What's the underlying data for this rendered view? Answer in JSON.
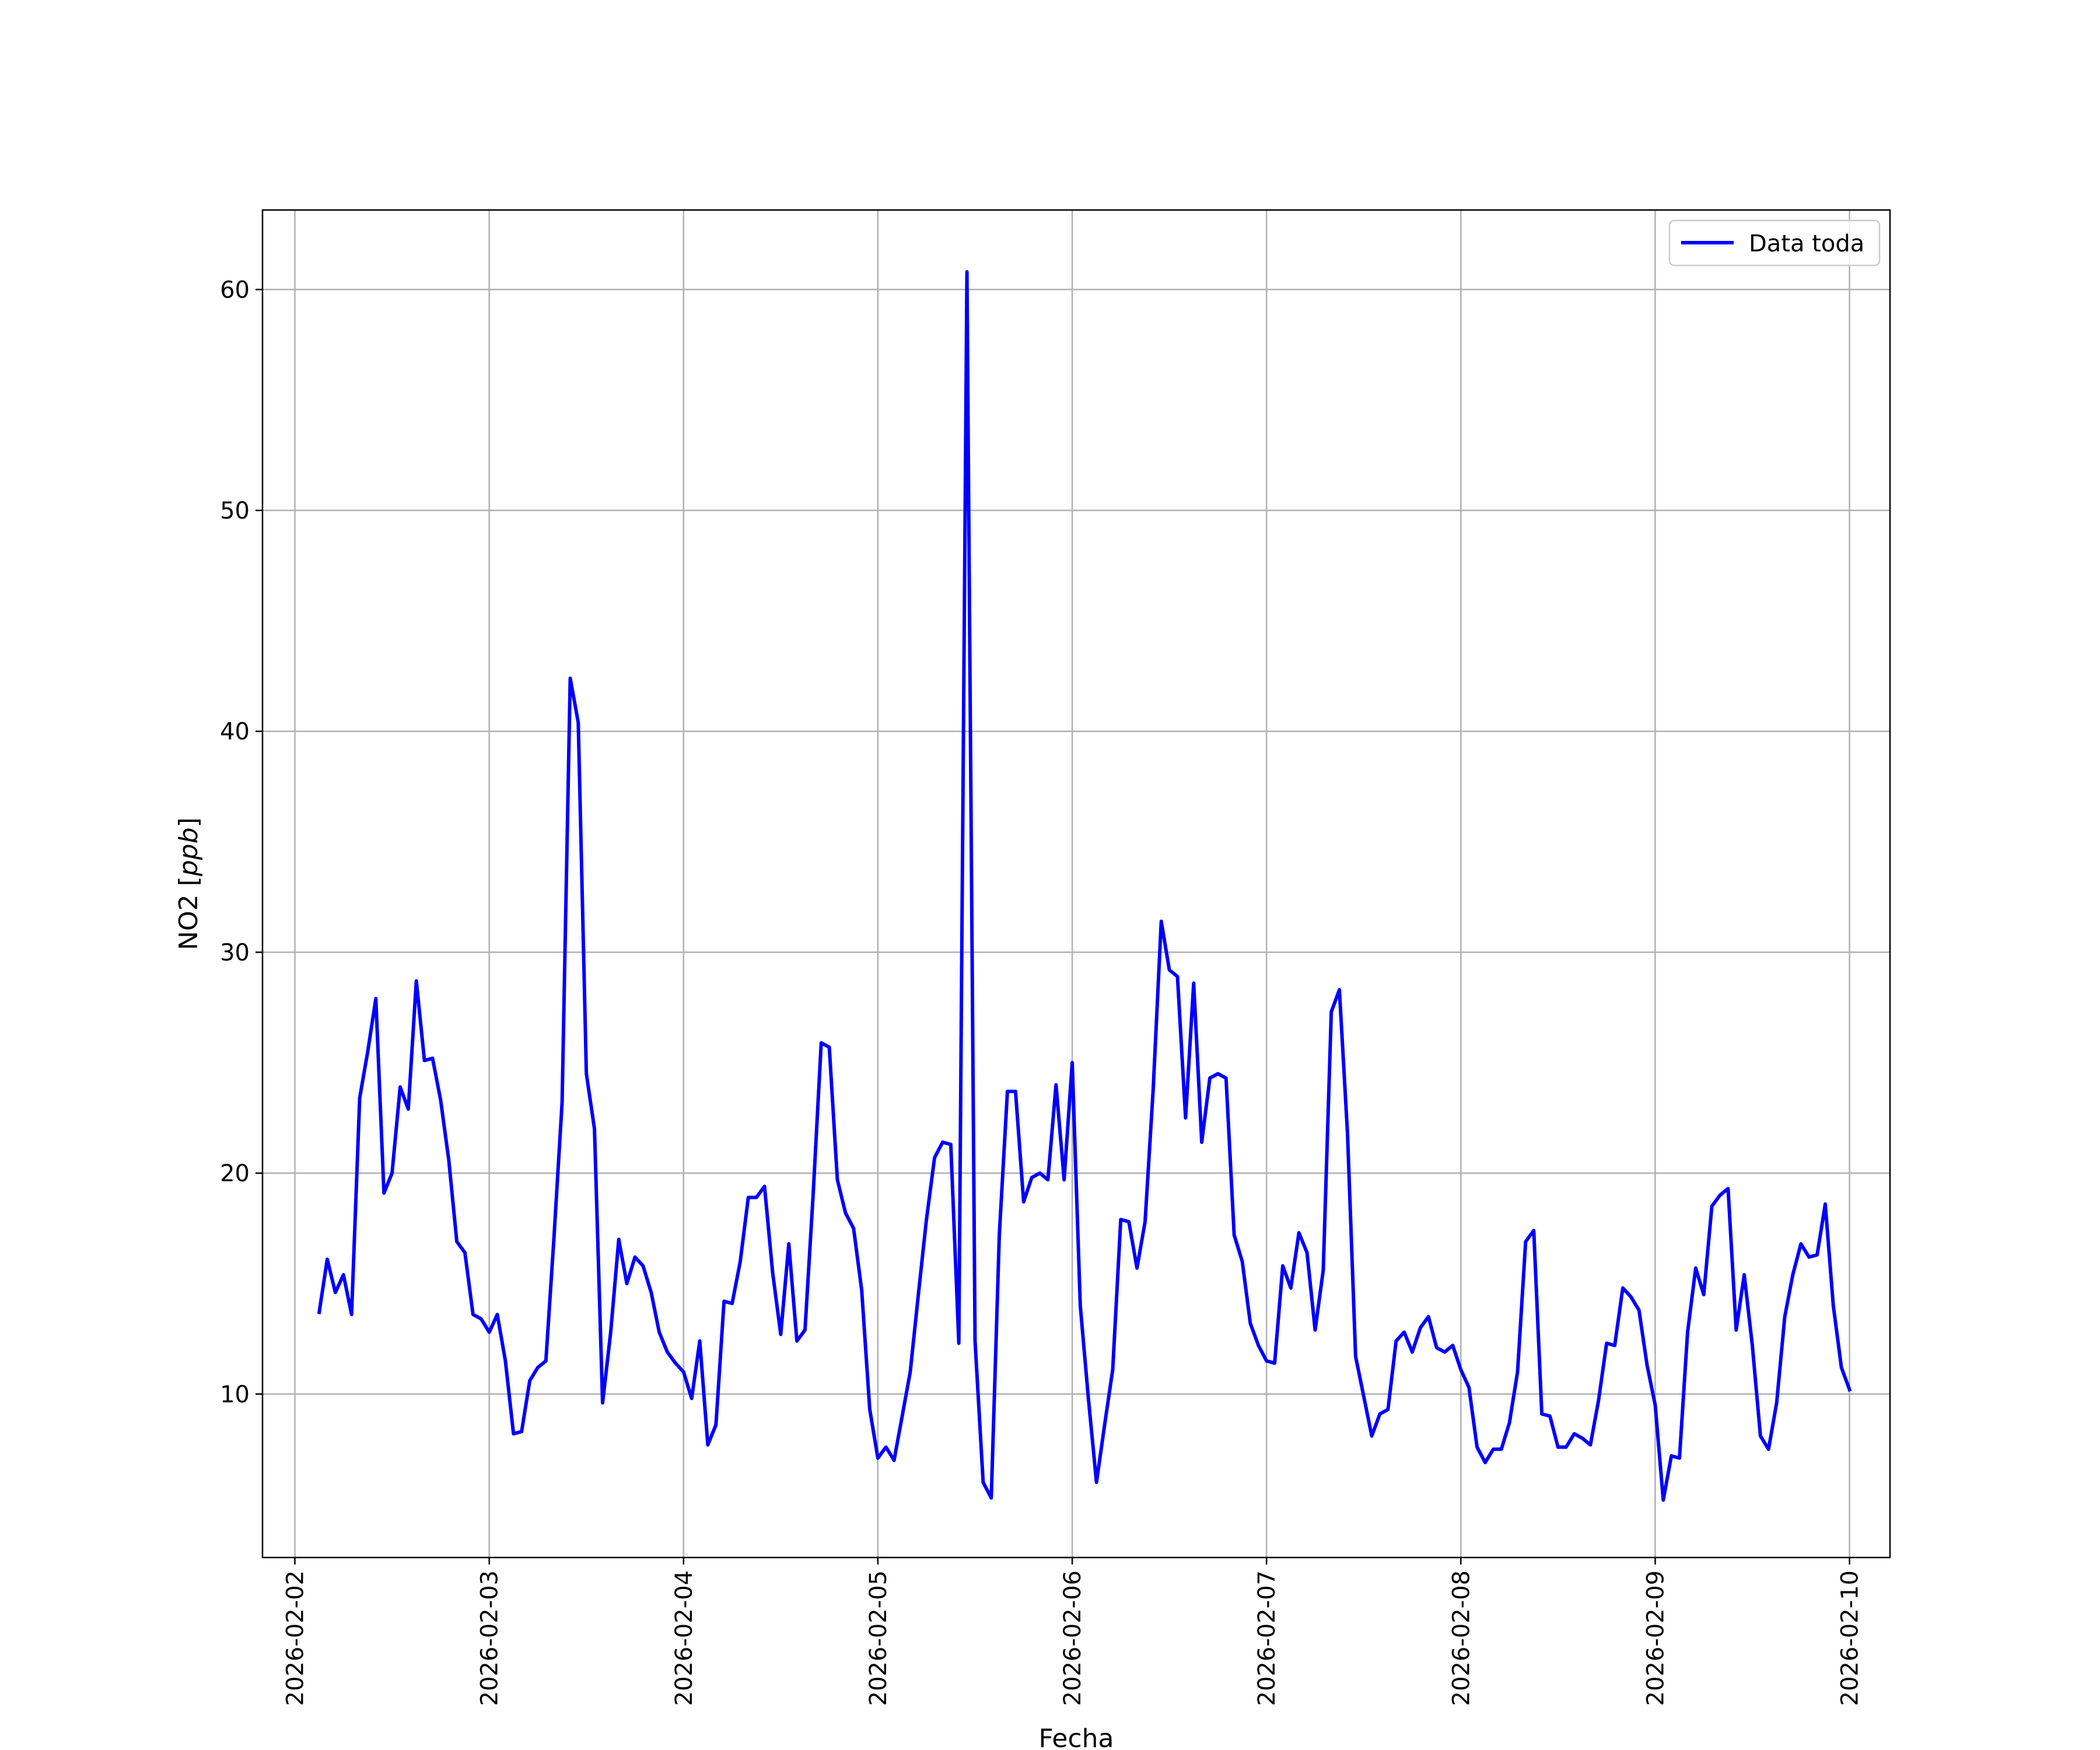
{
  "chart_data": {
    "type": "line",
    "title": "",
    "xlabel": "Fecha",
    "ylabel": "NO2 [ppb]",
    "ylabel_prefix": "NO2 [",
    "ylabel_unit": "ppb",
    "ylabel_suffix": "]",
    "x_type": "datetime",
    "xlim": [
      "2026-02-01T20:00",
      "2026-02-10T05:00"
    ],
    "ylim": [
      2.6,
      63.6
    ],
    "x_ticks": [
      "2026-02-02",
      "2026-02-03",
      "2026-02-04",
      "2026-02-05",
      "2026-02-06",
      "2026-02-07",
      "2026-02-08",
      "2026-02-09",
      "2026-02-10"
    ],
    "y_ticks": [
      10,
      20,
      30,
      40,
      50,
      60
    ],
    "grid": true,
    "legend": {
      "position": "upper right"
    },
    "series": [
      {
        "name": "Data toda",
        "color": "#0000ff",
        "x": [
          "2026-02-02T03:00",
          "2026-02-02T04:00",
          "2026-02-02T05:00",
          "2026-02-02T06:00",
          "2026-02-02T07:00",
          "2026-02-02T08:00",
          "2026-02-02T09:00",
          "2026-02-02T10:00",
          "2026-02-02T11:00",
          "2026-02-02T12:00",
          "2026-02-02T13:00",
          "2026-02-02T14:00",
          "2026-02-02T15:00",
          "2026-02-02T16:00",
          "2026-02-02T17:00",
          "2026-02-02T18:00",
          "2026-02-02T19:00",
          "2026-02-02T20:00",
          "2026-02-02T21:00",
          "2026-02-02T22:00",
          "2026-02-02T23:00",
          "2026-02-03T00:00",
          "2026-02-03T01:00",
          "2026-02-03T02:00",
          "2026-02-03T03:00",
          "2026-02-03T04:00",
          "2026-02-03T05:00",
          "2026-02-03T06:00",
          "2026-02-03T07:00",
          "2026-02-03T08:00",
          "2026-02-03T09:00",
          "2026-02-03T10:00",
          "2026-02-03T11:00",
          "2026-02-03T12:00",
          "2026-02-03T13:00",
          "2026-02-03T14:00",
          "2026-02-03T15:00",
          "2026-02-03T16:00",
          "2026-02-03T17:00",
          "2026-02-03T18:00",
          "2026-02-03T19:00",
          "2026-02-03T20:00",
          "2026-02-03T21:00",
          "2026-02-03T22:00",
          "2026-02-03T23:00",
          "2026-02-04T00:00",
          "2026-02-04T01:00",
          "2026-02-04T02:00",
          "2026-02-04T03:00",
          "2026-02-04T04:00",
          "2026-02-04T05:00",
          "2026-02-04T06:00",
          "2026-02-04T07:00",
          "2026-02-04T08:00",
          "2026-02-04T09:00",
          "2026-02-04T10:00",
          "2026-02-04T11:00",
          "2026-02-04T12:00",
          "2026-02-04T13:00",
          "2026-02-04T14:00",
          "2026-02-04T15:00",
          "2026-02-04T16:00",
          "2026-02-04T17:00",
          "2026-02-04T18:00",
          "2026-02-04T19:00",
          "2026-02-04T20:00",
          "2026-02-04T21:00",
          "2026-02-04T22:00",
          "2026-02-04T23:00",
          "2026-02-05T00:00",
          "2026-02-05T01:00",
          "2026-02-05T02:00",
          "2026-02-05T03:00",
          "2026-02-05T04:00",
          "2026-02-05T05:00",
          "2026-02-05T06:00",
          "2026-02-05T07:00",
          "2026-02-05T08:00",
          "2026-02-05T09:00",
          "2026-02-05T10:00",
          "2026-02-05T11:00",
          "2026-02-05T12:00",
          "2026-02-05T13:00",
          "2026-02-05T14:00",
          "2026-02-05T15:00",
          "2026-02-05T16:00",
          "2026-02-05T17:00",
          "2026-02-05T18:00",
          "2026-02-05T19:00",
          "2026-02-05T20:00",
          "2026-02-05T21:00",
          "2026-02-05T22:00",
          "2026-02-05T23:00",
          "2026-02-06T00:00",
          "2026-02-06T01:00",
          "2026-02-06T02:00",
          "2026-02-06T03:00",
          "2026-02-06T04:00",
          "2026-02-06T05:00",
          "2026-02-06T06:00",
          "2026-02-06T07:00",
          "2026-02-06T08:00",
          "2026-02-06T09:00",
          "2026-02-06T10:00",
          "2026-02-06T11:00",
          "2026-02-06T12:00",
          "2026-02-06T13:00",
          "2026-02-06T14:00",
          "2026-02-06T15:00",
          "2026-02-06T16:00",
          "2026-02-06T17:00",
          "2026-02-06T18:00",
          "2026-02-06T19:00",
          "2026-02-06T20:00",
          "2026-02-06T21:00",
          "2026-02-06T22:00",
          "2026-02-06T23:00",
          "2026-02-07T00:00",
          "2026-02-07T01:00",
          "2026-02-07T02:00",
          "2026-02-07T03:00",
          "2026-02-07T04:00",
          "2026-02-07T05:00",
          "2026-02-07T06:00",
          "2026-02-07T07:00",
          "2026-02-07T08:00",
          "2026-02-07T09:00",
          "2026-02-07T10:00",
          "2026-02-07T11:00",
          "2026-02-07T12:00",
          "2026-02-07T13:00",
          "2026-02-07T14:00",
          "2026-02-07T15:00",
          "2026-02-07T16:00",
          "2026-02-07T17:00",
          "2026-02-07T18:00",
          "2026-02-07T19:00",
          "2026-02-07T20:00",
          "2026-02-07T21:00",
          "2026-02-07T22:00",
          "2026-02-07T23:00",
          "2026-02-08T00:00",
          "2026-02-08T01:00",
          "2026-02-08T02:00",
          "2026-02-08T03:00",
          "2026-02-08T04:00",
          "2026-02-08T05:00",
          "2026-02-08T06:00",
          "2026-02-08T07:00",
          "2026-02-08T08:00",
          "2026-02-08T09:00",
          "2026-02-08T10:00",
          "2026-02-08T11:00",
          "2026-02-08T12:00",
          "2026-02-08T13:00",
          "2026-02-08T14:00",
          "2026-02-08T15:00",
          "2026-02-08T16:00",
          "2026-02-08T17:00",
          "2026-02-08T18:00",
          "2026-02-08T19:00",
          "2026-02-08T20:00",
          "2026-02-08T21:00",
          "2026-02-08T22:00",
          "2026-02-08T23:00",
          "2026-02-09T00:00",
          "2026-02-09T01:00",
          "2026-02-09T02:00",
          "2026-02-09T03:00",
          "2026-02-09T04:00",
          "2026-02-09T05:00",
          "2026-02-09T06:00",
          "2026-02-09T07:00",
          "2026-02-09T08:00",
          "2026-02-09T09:00",
          "2026-02-09T10:00",
          "2026-02-09T11:00",
          "2026-02-09T12:00",
          "2026-02-09T13:00",
          "2026-02-09T14:00",
          "2026-02-09T15:00",
          "2026-02-09T16:00",
          "2026-02-09T17:00",
          "2026-02-09T18:00",
          "2026-02-09T19:00",
          "2026-02-09T20:00",
          "2026-02-09T21:00",
          "2026-02-09T22:00",
          "2026-02-09T23:00",
          "2026-02-10T00:00"
        ],
        "values": [
          13.7,
          16.1,
          14.6,
          15.4,
          13.6,
          23.4,
          25.5,
          27.9,
          19.1,
          20.0,
          23.9,
          22.9,
          28.7,
          25.1,
          25.2,
          23.3,
          20.6,
          16.9,
          16.4,
          13.6,
          13.4,
          12.8,
          13.6,
          11.5,
          8.2,
          8.3,
          10.6,
          11.2,
          11.5,
          17.1,
          23.2,
          42.4,
          40.4,
          24.5,
          22.0,
          9.6,
          12.8,
          17.0,
          15.0,
          16.2,
          15.8,
          14.6,
          12.8,
          11.9,
          11.4,
          11.0,
          9.8,
          12.4,
          7.7,
          8.6,
          14.2,
          14.1,
          16.0,
          18.9,
          18.9,
          19.4,
          15.5,
          12.7,
          16.8,
          12.4,
          12.9,
          19.0,
          25.9,
          25.7,
          19.7,
          18.2,
          17.5,
          14.7,
          9.3,
          7.1,
          7.6,
          7.0,
          9.0,
          11.0,
          14.5,
          17.9,
          20.7,
          21.4,
          21.3,
          12.3,
          60.8,
          12.4,
          6.0,
          5.3,
          17.2,
          23.7,
          23.7,
          18.7,
          19.8,
          20.0,
          19.7,
          24.0,
          19.7,
          25.0,
          14.0,
          9.8,
          6.0,
          8.6,
          11.1,
          17.9,
          17.8,
          15.7,
          17.8,
          23.8,
          31.4,
          29.2,
          28.9,
          22.5,
          28.6,
          21.4,
          24.3,
          24.5,
          24.3,
          17.2,
          16.0,
          13.2,
          12.2,
          11.5,
          11.4,
          15.8,
          14.8,
          17.3,
          16.4,
          12.9,
          15.6,
          27.3,
          28.3,
          21.8,
          11.7,
          9.9,
          8.1,
          9.1,
          9.3,
          12.4,
          12.8,
          11.9,
          13.0,
          13.5,
          12.1,
          11.9,
          12.2,
          11.1,
          10.3,
          7.6,
          6.9,
          7.5,
          7.5,
          8.7,
          11.0,
          16.9,
          17.4,
          9.1,
          9.0,
          7.6,
          7.6,
          8.2,
          8.0,
          7.7,
          9.7,
          12.3,
          12.2,
          14.8,
          14.4,
          13.8,
          11.3,
          9.5,
          5.2,
          7.2,
          7.1,
          12.8,
          15.7,
          14.5,
          18.5,
          19.0,
          19.3,
          12.9,
          15.4,
          12.2,
          8.1,
          7.5,
          9.6,
          13.5,
          15.4,
          16.8,
          16.2,
          16.3,
          18.6,
          14.0,
          11.2,
          10.2
        ]
      }
    ]
  }
}
